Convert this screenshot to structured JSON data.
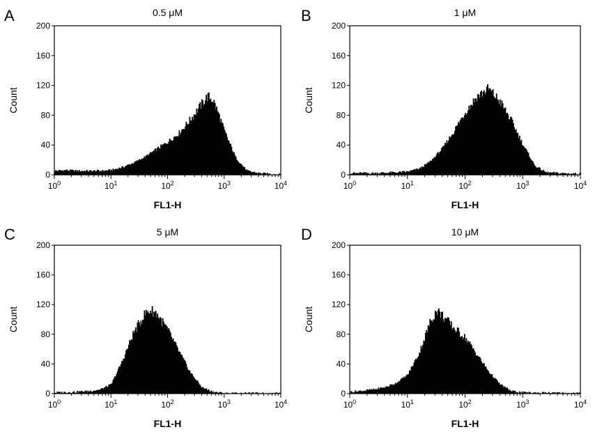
{
  "chart_data": [
    {
      "type": "area",
      "panel": "A",
      "title": "0.5 μM",
      "xlabel": "FL1-H",
      "ylabel": "Count",
      "xscale": "log",
      "xlim": [
        1,
        10000
      ],
      "ylim": [
        0,
        200
      ],
      "yticks": [
        0,
        40,
        80,
        120,
        160,
        200
      ],
      "xticks": [
        {
          "base": "10",
          "exp": "0"
        },
        {
          "base": "10",
          "exp": "1"
        },
        {
          "base": "10",
          "exp": "2"
        },
        {
          "base": "10",
          "exp": "3"
        },
        {
          "base": "10",
          "exp": "4"
        }
      ],
      "series": [
        {
          "x": [
            1,
            1.6,
            2.5,
            4,
            6.3,
            10,
            16,
            25,
            40,
            63,
            100,
            160,
            250,
            400,
            500,
            630,
            800,
            1000,
            1600,
            2500,
            4000,
            6300,
            10000
          ],
          "y": [
            5,
            6,
            5,
            5,
            5,
            6,
            10,
            16,
            24,
            34,
            44,
            56,
            74,
            95,
            105,
            100,
            80,
            58,
            22,
            5,
            2,
            1,
            0
          ]
        }
      ]
    },
    {
      "type": "area",
      "panel": "B",
      "title": "1 μM",
      "xlabel": "FL1-H",
      "ylabel": "Count",
      "xscale": "log",
      "xlim": [
        1,
        10000
      ],
      "ylim": [
        0,
        200
      ],
      "yticks": [
        0,
        40,
        80,
        120,
        160,
        200
      ],
      "xticks": [
        {
          "base": "10",
          "exp": "0"
        },
        {
          "base": "10",
          "exp": "1"
        },
        {
          "base": "10",
          "exp": "2"
        },
        {
          "base": "10",
          "exp": "3"
        },
        {
          "base": "10",
          "exp": "4"
        }
      ],
      "series": [
        {
          "x": [
            1,
            2.5,
            6.3,
            10,
            16,
            25,
            40,
            63,
            100,
            160,
            250,
            400,
            630,
            1000,
            1600,
            2500,
            4000,
            10000
          ],
          "y": [
            2,
            2,
            3,
            4,
            8,
            18,
            35,
            58,
            84,
            105,
            115,
            98,
            72,
            40,
            12,
            3,
            2,
            1
          ]
        }
      ]
    },
    {
      "type": "area",
      "panel": "C",
      "title": "5 μM",
      "xlabel": "FL1-H",
      "ylabel": "Count",
      "xscale": "log",
      "xlim": [
        1,
        10000
      ],
      "ylim": [
        0,
        200
      ],
      "yticks": [
        0,
        40,
        80,
        120,
        160,
        200
      ],
      "xticks": [
        {
          "base": "10",
          "exp": "0"
        },
        {
          "base": "10",
          "exp": "1"
        },
        {
          "base": "10",
          "exp": "2"
        },
        {
          "base": "10",
          "exp": "3"
        },
        {
          "base": "10",
          "exp": "4"
        }
      ],
      "series": [
        {
          "x": [
            1,
            2.5,
            4,
            6.3,
            10,
            16,
            25,
            40,
            50,
            63,
            100,
            160,
            250,
            400,
            630,
            1000,
            10000
          ],
          "y": [
            1,
            2,
            3,
            5,
            12,
            45,
            82,
            108,
            112,
            108,
            85,
            55,
            28,
            8,
            2,
            0,
            0
          ]
        }
      ]
    },
    {
      "type": "area",
      "panel": "D",
      "title": "10 μM",
      "xlabel": "FL1-H",
      "ylabel": "Count",
      "xscale": "log",
      "xlim": [
        1,
        10000
      ],
      "ylim": [
        0,
        200
      ],
      "yticks": [
        0,
        40,
        80,
        120,
        160,
        200
      ],
      "xticks": [
        {
          "base": "10",
          "exp": "0"
        },
        {
          "base": "10",
          "exp": "1"
        },
        {
          "base": "10",
          "exp": "2"
        },
        {
          "base": "10",
          "exp": "3"
        },
        {
          "base": "10",
          "exp": "4"
        }
      ],
      "series": [
        {
          "x": [
            1,
            2.5,
            4,
            6.3,
            10,
            16,
            25,
            32,
            40,
            63,
            100,
            160,
            250,
            400,
            630,
            1000,
            10000
          ],
          "y": [
            2,
            5,
            8,
            14,
            25,
            55,
            98,
            112,
            105,
            88,
            75,
            52,
            30,
            12,
            3,
            1,
            0
          ]
        }
      ]
    }
  ]
}
